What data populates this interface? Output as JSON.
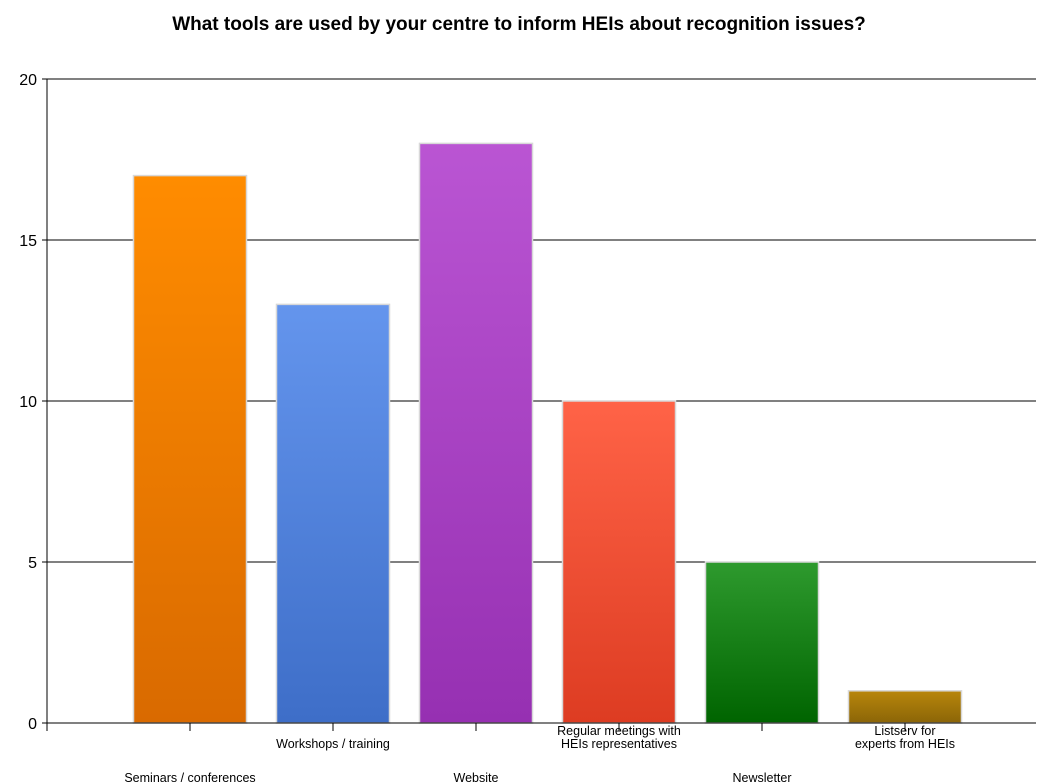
{
  "chart_data": {
    "type": "bar",
    "title": "What tools are used by your centre to inform HEIs about recognition issues?",
    "categories": [
      [
        "Seminars / conferences"
      ],
      [
        "Workshops / training"
      ],
      [
        "Website"
      ],
      [
        "Regular meetings with",
        "HEIs representatives"
      ],
      [
        "Newsletter"
      ],
      [
        "Listserv for",
        "experts from HEIs"
      ]
    ],
    "values": [
      17,
      13,
      18,
      10,
      5,
      1
    ],
    "colors": [
      [
        "#ff8c00",
        "#d96a00"
      ],
      [
        "#6495ed",
        "#3e6ec8"
      ],
      [
        "#ba55d3",
        "#9630b2"
      ],
      [
        "#ff6347",
        "#dd3c22"
      ],
      [
        "#2e9a2e",
        "#006400"
      ],
      [
        "#b8860b",
        "#8b6508"
      ]
    ],
    "ylim": [
      0,
      20
    ],
    "yticks": [
      0,
      5,
      10,
      15,
      20
    ],
    "grid": true,
    "xlabel": "",
    "ylabel": ""
  }
}
